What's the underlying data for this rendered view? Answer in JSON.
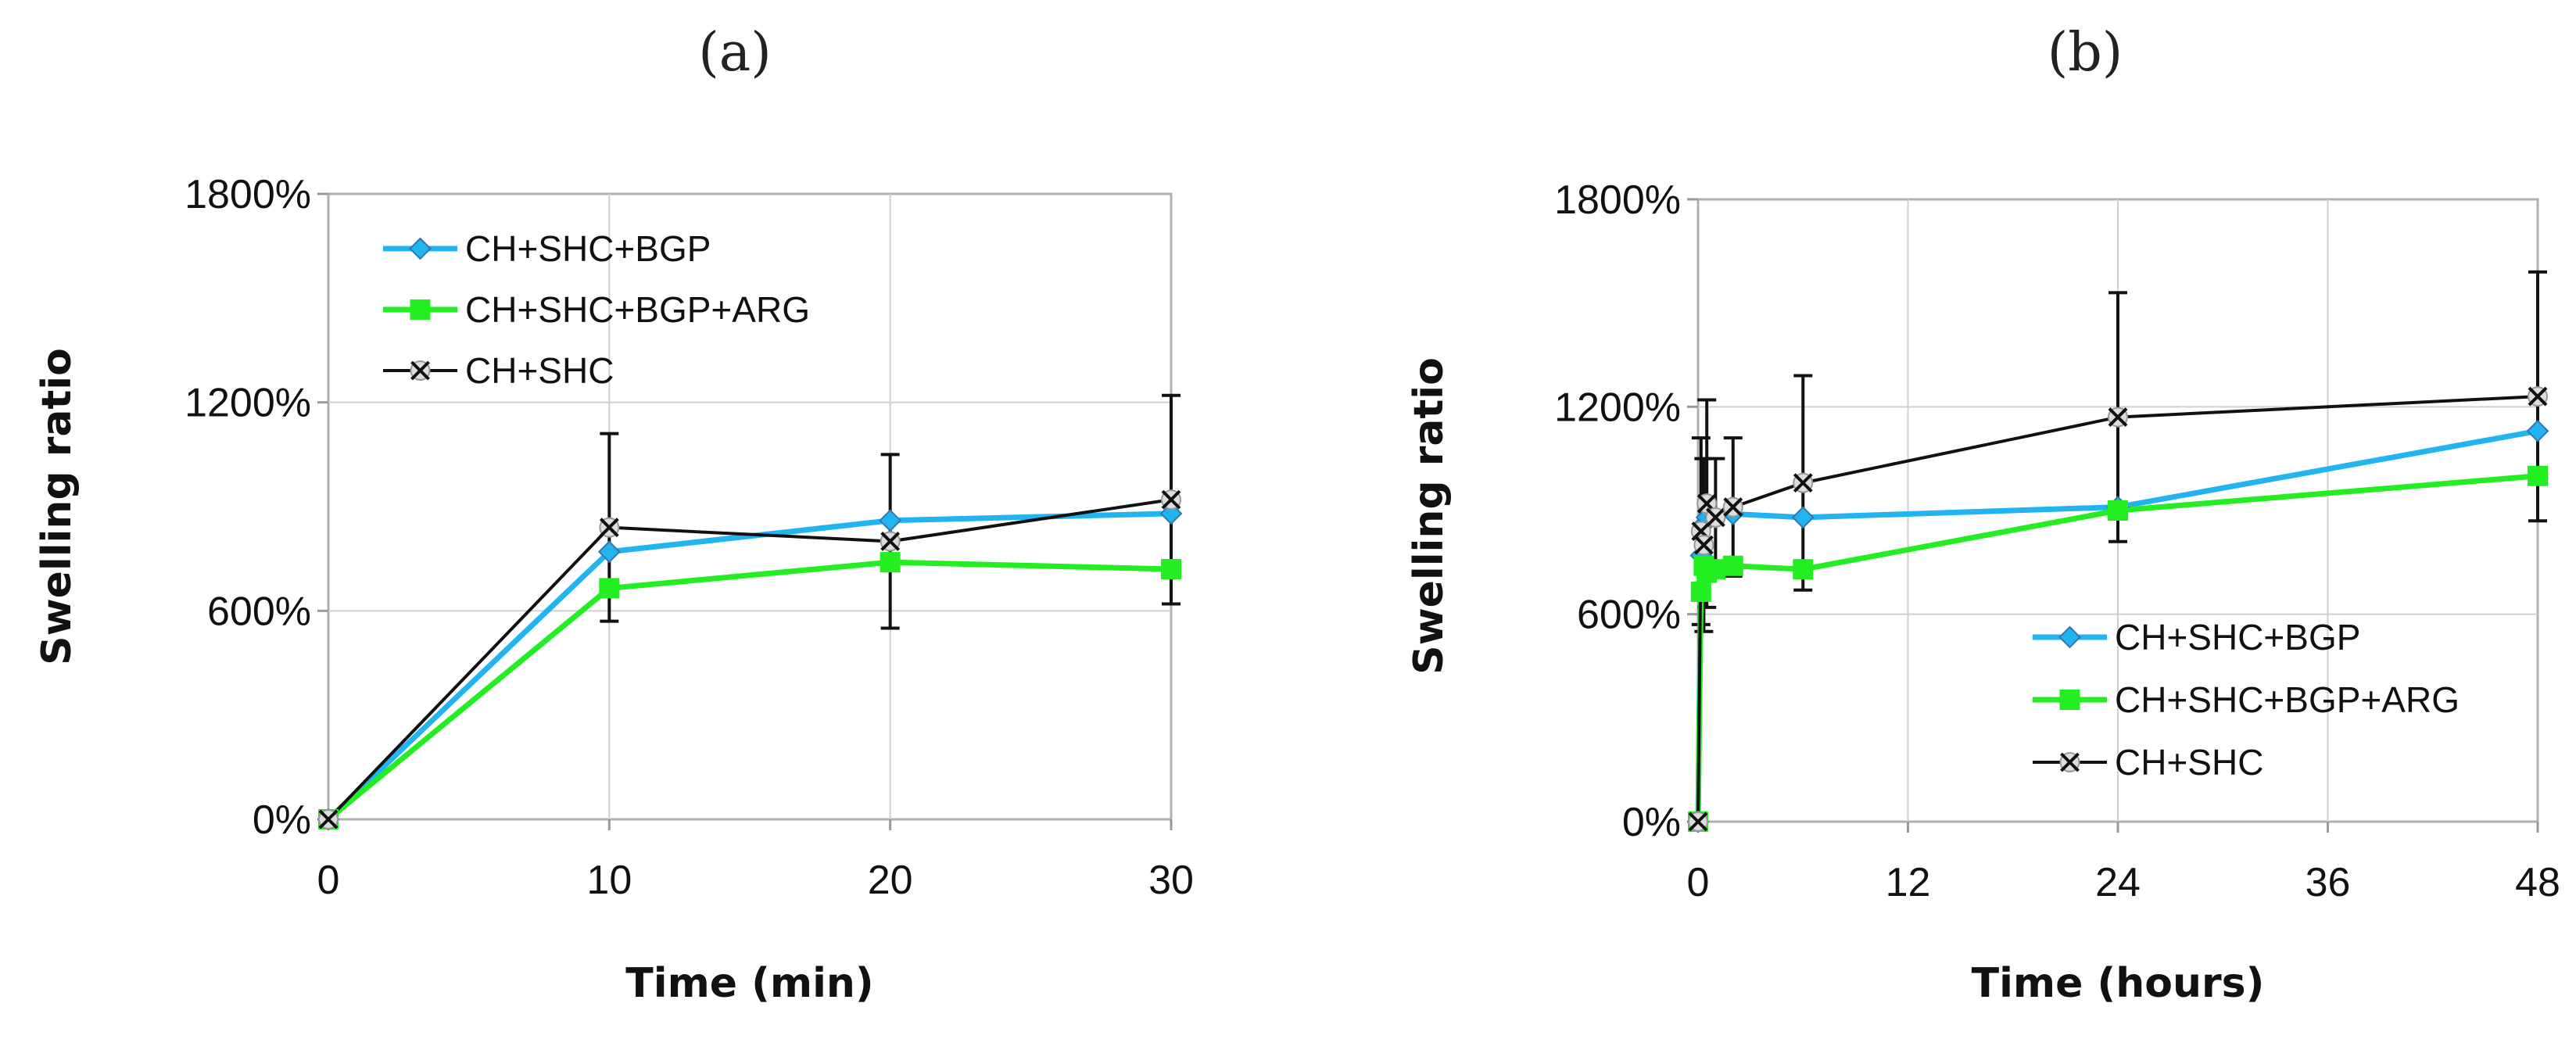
{
  "chart_data": [
    {
      "panel": "(a)",
      "type": "line",
      "xlabel": "Time (min)",
      "ylabel": "Swelling ratio",
      "xlim": [
        0,
        30
      ],
      "ylim": [
        0,
        1800
      ],
      "xticks": [
        0,
        10,
        20,
        30
      ],
      "yticks": [
        0,
        600,
        1200,
        1800
      ],
      "xtick_labels": [
        "0",
        "10",
        "20",
        "30"
      ],
      "ytick_labels": [
        "0%",
        "600%",
        "1200%",
        "1800%"
      ],
      "legend": "top-left",
      "series": [
        {
          "name": "CH+SHC+BGP",
          "color": "#22b4f0",
          "marker": "diamond",
          "x": [
            0,
            10,
            20,
            30
          ],
          "y": [
            0,
            770,
            860,
            880
          ],
          "err": [
            0,
            0,
            0,
            0
          ]
        },
        {
          "name": "CH+SHC+BGP+ARG",
          "color": "#22ee22",
          "marker": "square",
          "x": [
            0,
            10,
            20,
            30
          ],
          "y": [
            0,
            665,
            740,
            720
          ],
          "err": [
            0,
            0,
            0,
            0
          ]
        },
        {
          "name": "CH+SHC",
          "color": "#111111",
          "marker": "x",
          "x": [
            0,
            10,
            20,
            30
          ],
          "y": [
            0,
            840,
            800,
            920
          ],
          "err": [
            0,
            270,
            250,
            300
          ]
        }
      ]
    },
    {
      "panel": "(b)",
      "type": "line",
      "xlabel": "Time (hours)",
      "ylabel": "Swelling ratio",
      "xlim": [
        0,
        48
      ],
      "ylim": [
        0,
        1800
      ],
      "xticks": [
        0,
        12,
        24,
        36,
        48
      ],
      "yticks": [
        0,
        600,
        1200,
        1800
      ],
      "xtick_labels": [
        "0",
        "12",
        "24",
        "36",
        "48"
      ],
      "ytick_labels": [
        "0%",
        "600%",
        "1200%",
        "1800%"
      ],
      "legend": "bottom-right",
      "series": [
        {
          "name": "CH+SHC+BGP",
          "color": "#22b4f0",
          "marker": "diamond",
          "x": [
            0,
            0.17,
            0.33,
            0.5,
            1,
            2,
            6,
            24,
            48
          ],
          "y": [
            0,
            770,
            860,
            880,
            880,
            890,
            880,
            910,
            1130
          ],
          "err": [
            0,
            0,
            0,
            0,
            0,
            0,
            0,
            0,
            0
          ]
        },
        {
          "name": "CH+SHC+BGP+ARG",
          "color": "#22ee22",
          "marker": "square",
          "x": [
            0,
            0.17,
            0.33,
            0.5,
            1,
            2,
            6,
            24,
            48
          ],
          "y": [
            0,
            665,
            740,
            720,
            730,
            740,
            730,
            900,
            1000
          ],
          "err": [
            0,
            0,
            0,
            0,
            0,
            0,
            0,
            0,
            0
          ]
        },
        {
          "name": "CH+SHC",
          "color": "#111111",
          "marker": "x",
          "x": [
            0,
            0.17,
            0.33,
            0.5,
            1,
            2,
            6,
            24,
            48
          ],
          "y": [
            0,
            840,
            800,
            920,
            880,
            910,
            980,
            1170,
            1230
          ],
          "err": [
            0,
            270,
            250,
            300,
            170,
            200,
            310,
            360,
            360
          ]
        }
      ]
    }
  ]
}
